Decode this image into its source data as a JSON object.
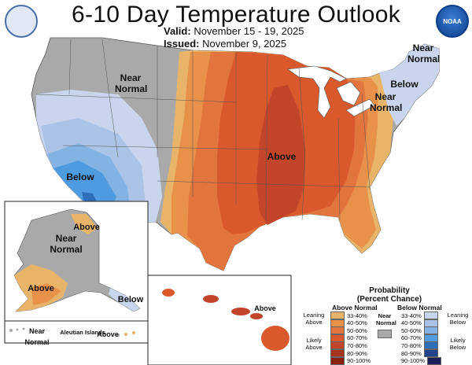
{
  "header": {
    "title": "6-10 Day Temperature Outlook",
    "valid_label": "Valid:",
    "valid_value": "November 15 - 19, 2025",
    "issued_label": "Issued:",
    "issued_value": "November 9, 2025",
    "right_logo_text": "NOAA"
  },
  "map_labels": {
    "near_normal_west": "Near Normal",
    "near_normal_ne": "Near Normal",
    "below_ne": "Below",
    "near_normal_east": "Near Normal",
    "above_center": "Above",
    "below_sw": "Below"
  },
  "alaska": {
    "above_n": "Above",
    "near_normal": "Near Normal",
    "above_sw": "Above",
    "below_se": "Below"
  },
  "aleutian": {
    "near_normal": "Near Normal",
    "islands_name": "Aleutian Islands",
    "above": "Above"
  },
  "hawaii": {
    "above": "Above"
  },
  "legend": {
    "title_line1": "Probability",
    "title_line2": "(Percent Chance)",
    "above_header": "Above Normal",
    "below_header": "Below Normal",
    "near_normal_line1": "Near",
    "near_normal_line2": "Normal",
    "leaning_above": "Leaning Above",
    "likely_above": "Likely Above",
    "leaning_below": "Leaning Below",
    "likely_below": "Likely Below",
    "ranges": [
      "33-40%",
      "40-50%",
      "50-60%",
      "60-70%",
      "70-80%",
      "80-90%",
      "90-100%"
    ],
    "above_colors": [
      "#e8b46a",
      "#e8914a",
      "#e2753e",
      "#d9582c",
      "#c2452a",
      "#a8341e",
      "#8a2010"
    ],
    "below_colors": [
      "#c9d5ec",
      "#aac3e7",
      "#82b3e3",
      "#4f9bdf",
      "#2f6fb9",
      "#23438e",
      "#1a1e55"
    ],
    "near_normal_color": "#a9a9a9"
  }
}
